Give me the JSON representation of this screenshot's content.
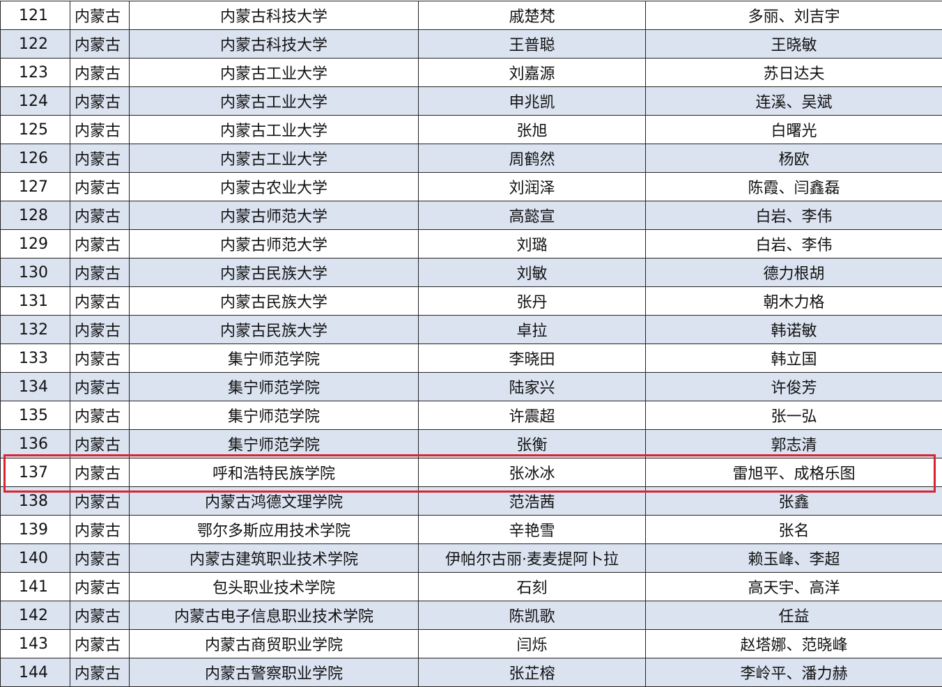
{
  "highlight_color": "#d9232f",
  "row_alt_color": "#dbe3f1",
  "highlighted_row_no": "137",
  "rows": [
    {
      "no": "121",
      "province": "内蒙古",
      "school": "内蒙古科技大学",
      "student": "戚楚梵",
      "advisor": "多丽、刘吉宇"
    },
    {
      "no": "122",
      "province": "内蒙古",
      "school": "内蒙古科技大学",
      "student": "王普聪",
      "advisor": "王晓敏"
    },
    {
      "no": "123",
      "province": "内蒙古",
      "school": "内蒙古工业大学",
      "student": "刘嘉源",
      "advisor": "苏日达夫"
    },
    {
      "no": "124",
      "province": "内蒙古",
      "school": "内蒙古工业大学",
      "student": "申兆凯",
      "advisor": "连溪、吴斌"
    },
    {
      "no": "125",
      "province": "内蒙古",
      "school": "内蒙古工业大学",
      "student": "张旭",
      "advisor": "白曙光"
    },
    {
      "no": "126",
      "province": "内蒙古",
      "school": "内蒙古工业大学",
      "student": "周鹤然",
      "advisor": "杨欧"
    },
    {
      "no": "127",
      "province": "内蒙古",
      "school": "内蒙古农业大学",
      "student": "刘润泽",
      "advisor": "陈霞、闫鑫磊"
    },
    {
      "no": "128",
      "province": "内蒙古",
      "school": "内蒙古师范大学",
      "student": "高懿宣",
      "advisor": "白岩、李伟"
    },
    {
      "no": "129",
      "province": "内蒙古",
      "school": "内蒙古师范大学",
      "student": "刘璐",
      "advisor": "白岩、李伟"
    },
    {
      "no": "130",
      "province": "内蒙古",
      "school": "内蒙古民族大学",
      "student": "刘敏",
      "advisor": "德力根胡"
    },
    {
      "no": "131",
      "province": "内蒙古",
      "school": "内蒙古民族大学",
      "student": "张丹",
      "advisor": "朝木力格"
    },
    {
      "no": "132",
      "province": "内蒙古",
      "school": "内蒙古民族大学",
      "student": "卓拉",
      "advisor": "韩诺敏"
    },
    {
      "no": "133",
      "province": "内蒙古",
      "school": "集宁师范学院",
      "student": "李晓田",
      "advisor": "韩立国"
    },
    {
      "no": "134",
      "province": "内蒙古",
      "school": "集宁师范学院",
      "student": "陆家兴",
      "advisor": "许俊芳"
    },
    {
      "no": "135",
      "province": "内蒙古",
      "school": "集宁师范学院",
      "student": "许震超",
      "advisor": "张一弘"
    },
    {
      "no": "136",
      "province": "内蒙古",
      "school": "集宁师范学院",
      "student": "张衡",
      "advisor": "郭志清"
    },
    {
      "no": "137",
      "province": "内蒙古",
      "school": "呼和浩特民族学院",
      "student": "张冰冰",
      "advisor": "雷旭平、成格乐图"
    },
    {
      "no": "138",
      "province": "内蒙古",
      "school": "内蒙古鸿德文理学院",
      "student": "范浩茜",
      "advisor": "张鑫"
    },
    {
      "no": "139",
      "province": "内蒙古",
      "school": "鄂尔多斯应用技术学院",
      "student": "辛艳雪",
      "advisor": "张名"
    },
    {
      "no": "140",
      "province": "内蒙古",
      "school": "内蒙古建筑职业技术学院",
      "student": "伊帕尔古丽·麦麦提阿卜拉",
      "advisor": "赖玉峰、李超"
    },
    {
      "no": "141",
      "province": "内蒙古",
      "school": "包头职业技术学院",
      "student": "石刻",
      "advisor": "高天宇、高洋"
    },
    {
      "no": "142",
      "province": "内蒙古",
      "school": "内蒙古电子信息职业技术学院",
      "student": "陈凯歌",
      "advisor": "任益"
    },
    {
      "no": "143",
      "province": "内蒙古",
      "school": "内蒙古商贸职业学院",
      "student": "闫烁",
      "advisor": "赵塔娜、范晓峰"
    },
    {
      "no": "144",
      "province": "内蒙古",
      "school": "内蒙古警察职业学院",
      "student": "张芷榕",
      "advisor": "李岭平、潘力赫"
    }
  ]
}
